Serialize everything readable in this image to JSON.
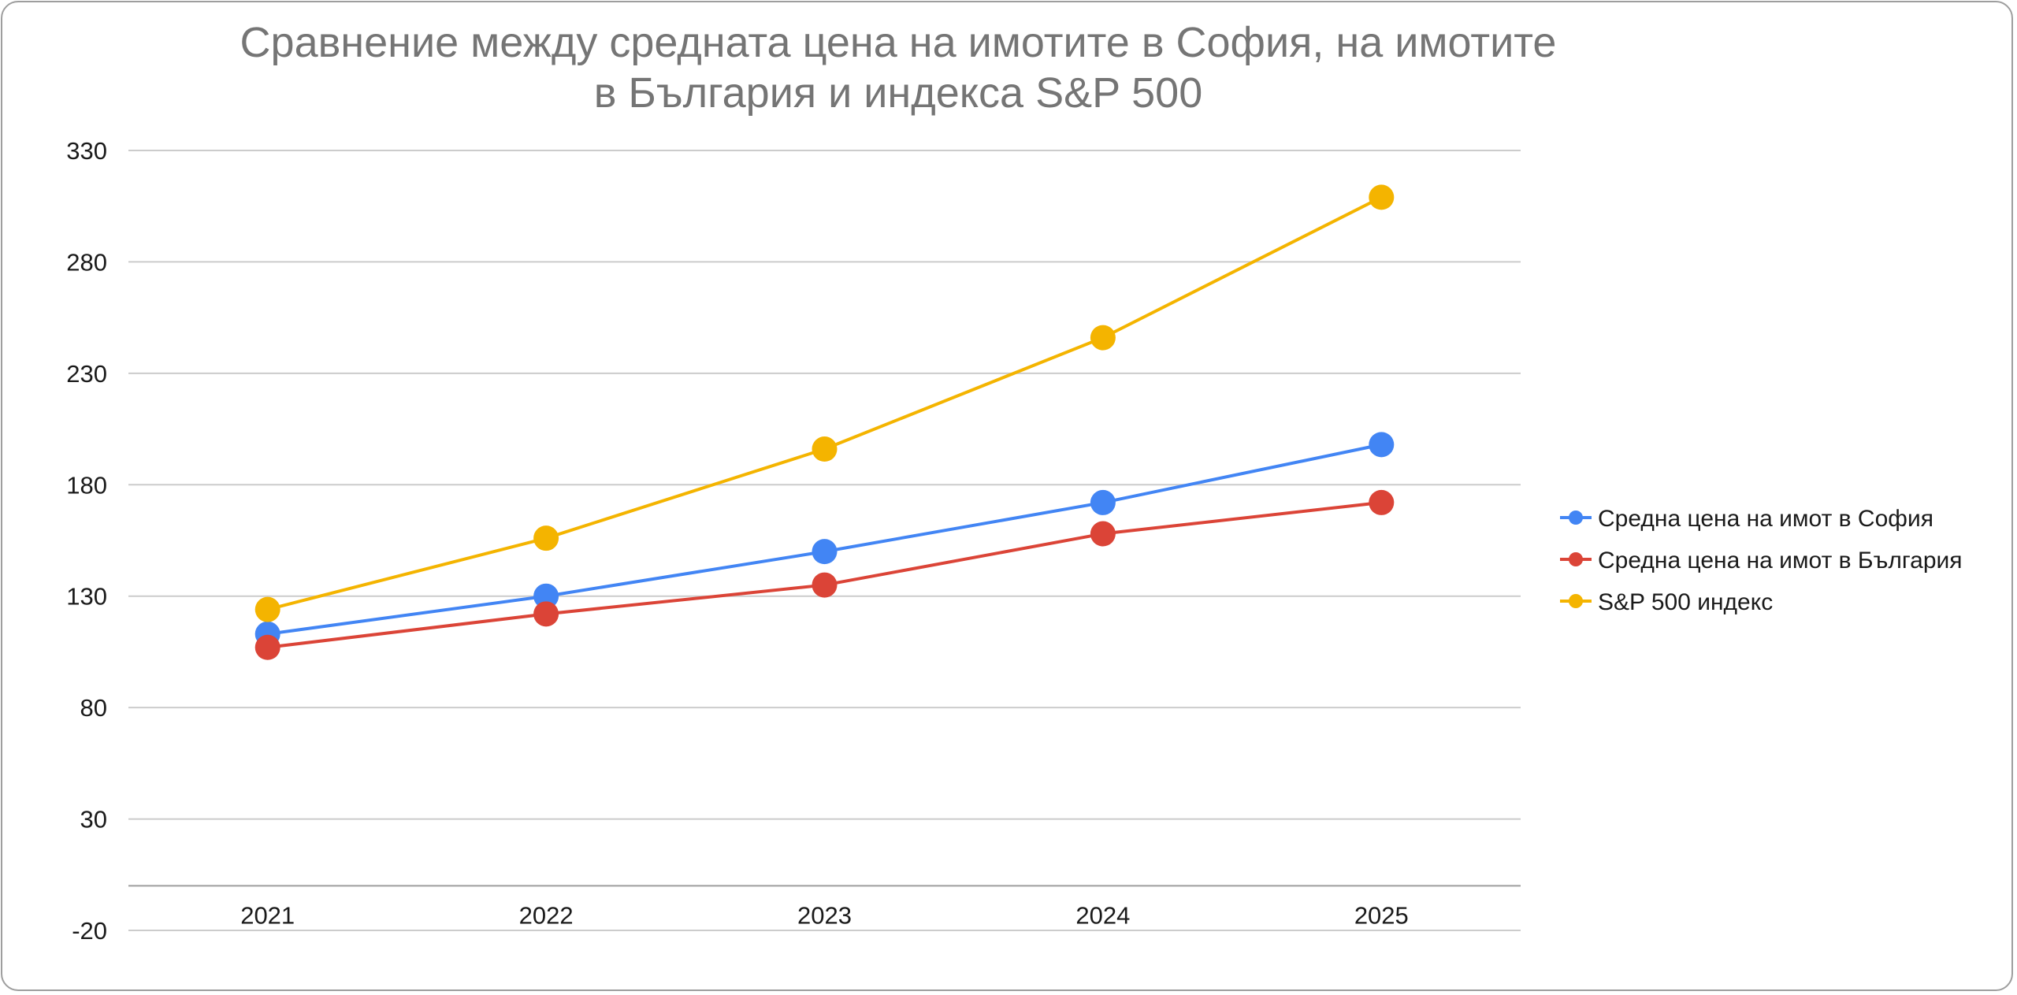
{
  "chart_data": {
    "type": "line",
    "title": "Сравнение между средната цена на имотите в София, на имотите в България и индекса S&P 500",
    "xlabel": "",
    "ylabel": "",
    "categories": [
      "2021",
      "2022",
      "2023",
      "2024",
      "2025"
    ],
    "y_ticks": [
      "330",
      "280",
      "230",
      "180",
      "130",
      "80",
      "30",
      "-20"
    ],
    "ylim": [
      -20,
      330
    ],
    "grid": true,
    "legend_position": "right",
    "series": [
      {
        "name": "Средна цена на имот в София",
        "color": "#4285f4",
        "values": [
          113,
          130,
          150,
          172,
          198
        ]
      },
      {
        "name": "Средна цена на имот в България",
        "color": "#db4437",
        "values": [
          107,
          122,
          135,
          158,
          172
        ]
      },
      {
        "name": "S&P 500 индекс",
        "color": "#f4b400",
        "values": [
          124,
          156,
          196,
          246,
          309
        ]
      }
    ]
  }
}
